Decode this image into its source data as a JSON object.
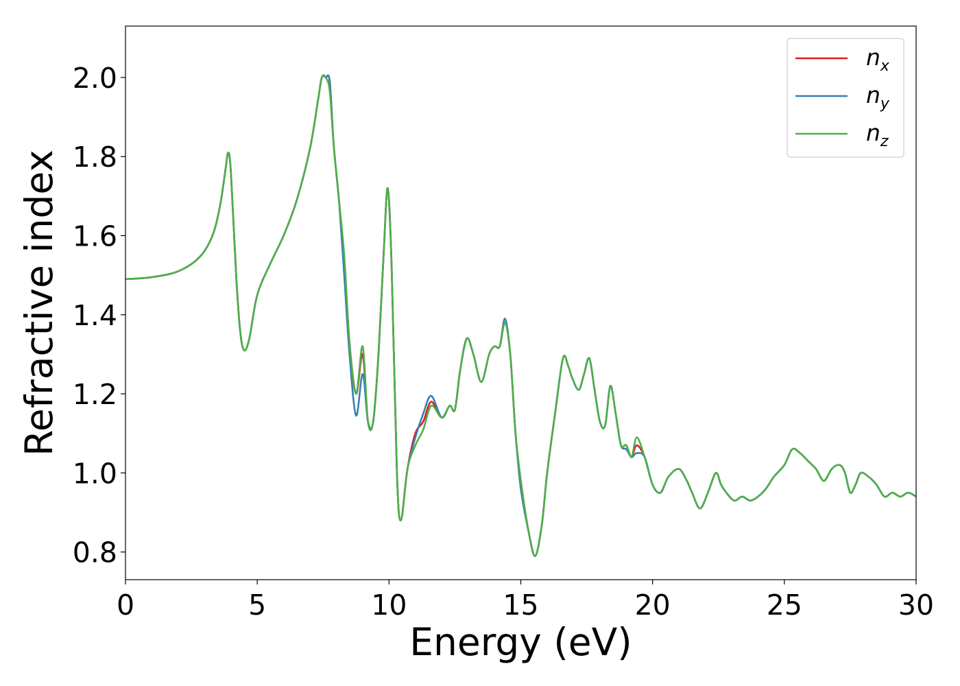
{
  "chart_data": {
    "type": "line",
    "title": "",
    "xlabel": "Energy (eV)",
    "ylabel": "Refractive index",
    "xlim": [
      0,
      30
    ],
    "ylim": [
      0.73,
      2.13
    ],
    "xticks": [
      0,
      5,
      10,
      15,
      20,
      25,
      30
    ],
    "yticks": [
      0.8,
      1.0,
      1.2,
      1.4,
      1.6,
      1.8,
      2.0
    ],
    "xtick_labels": [
      "0",
      "5",
      "10",
      "15",
      "20",
      "25",
      "30"
    ],
    "ytick_labels": [
      "0.8",
      "1.0",
      "1.2",
      "1.4",
      "1.6",
      "1.8",
      "2.0"
    ],
    "grid": false,
    "legend_position": "top-right",
    "colors": {
      "n_x": "#e41a1c",
      "n_y": "#377eb8",
      "n_z": "#4daf4a"
    },
    "base_curve": [
      [
        0.0,
        1.49
      ],
      [
        1.0,
        1.495
      ],
      [
        2.0,
        1.51
      ],
      [
        2.8,
        1.545
      ],
      [
        3.3,
        1.6
      ],
      [
        3.6,
        1.68
      ],
      [
        3.8,
        1.77
      ],
      [
        3.9,
        1.81
      ],
      [
        4.0,
        1.76
      ],
      [
        4.2,
        1.5
      ],
      [
        4.35,
        1.36
      ],
      [
        4.5,
        1.31
      ],
      [
        4.7,
        1.34
      ],
      [
        5.0,
        1.45
      ],
      [
        5.5,
        1.53
      ],
      [
        6.0,
        1.6
      ],
      [
        6.5,
        1.69
      ],
      [
        7.0,
        1.82
      ],
      [
        7.3,
        1.94
      ],
      [
        7.45,
        2.0
      ],
      [
        7.6,
        2.0
      ],
      [
        7.75,
        1.99
      ],
      [
        7.9,
        1.83
      ],
      [
        8.1,
        1.69
      ],
      [
        8.3,
        1.5
      ],
      [
        8.5,
        1.33
      ],
      [
        8.75,
        1.2
      ],
      [
        9.0,
        1.3
      ],
      [
        9.2,
        1.13
      ],
      [
        9.4,
        1.13
      ],
      [
        9.6,
        1.3
      ],
      [
        9.8,
        1.56
      ],
      [
        9.95,
        1.72
      ],
      [
        10.1,
        1.52
      ],
      [
        10.3,
        1.0
      ],
      [
        10.45,
        0.88
      ],
      [
        10.7,
        1.01
      ],
      [
        11.0,
        1.09
      ],
      [
        11.3,
        1.13
      ],
      [
        11.6,
        1.17
      ],
      [
        12.0,
        1.14
      ],
      [
        12.3,
        1.17
      ],
      [
        12.5,
        1.16
      ],
      [
        12.7,
        1.26
      ],
      [
        12.95,
        1.34
      ],
      [
        13.2,
        1.3
      ],
      [
        13.5,
        1.23
      ],
      [
        13.8,
        1.3
      ],
      [
        14.0,
        1.32
      ],
      [
        14.2,
        1.32
      ],
      [
        14.4,
        1.38
      ],
      [
        14.6,
        1.3
      ],
      [
        14.8,
        1.1
      ],
      [
        15.0,
        0.98
      ],
      [
        15.3,
        0.85
      ],
      [
        15.55,
        0.79
      ],
      [
        15.8,
        0.87
      ],
      [
        16.0,
        1.0
      ],
      [
        16.3,
        1.15
      ],
      [
        16.6,
        1.29
      ],
      [
        16.8,
        1.27
      ],
      [
        16.95,
        1.24
      ],
      [
        17.2,
        1.21
      ],
      [
        17.4,
        1.25
      ],
      [
        17.6,
        1.29
      ],
      [
        17.8,
        1.21
      ],
      [
        18.0,
        1.13
      ],
      [
        18.2,
        1.12
      ],
      [
        18.4,
        1.22
      ],
      [
        18.6,
        1.15
      ],
      [
        18.8,
        1.07
      ],
      [
        19.0,
        1.07
      ],
      [
        19.2,
        1.04
      ],
      [
        19.4,
        1.07
      ],
      [
        19.7,
        1.04
      ],
      [
        20.0,
        0.97
      ],
      [
        20.3,
        0.95
      ],
      [
        20.6,
        0.99
      ],
      [
        21.0,
        1.01
      ],
      [
        21.3,
        0.98
      ],
      [
        21.5,
        0.95
      ],
      [
        21.8,
        0.91
      ],
      [
        22.1,
        0.95
      ],
      [
        22.4,
        1.0
      ],
      [
        22.6,
        0.97
      ],
      [
        22.8,
        0.95
      ],
      [
        23.1,
        0.93
      ],
      [
        23.4,
        0.94
      ],
      [
        23.7,
        0.93
      ],
      [
        24.0,
        0.94
      ],
      [
        24.3,
        0.96
      ],
      [
        24.6,
        0.99
      ],
      [
        25.0,
        1.02
      ],
      [
        25.3,
        1.06
      ],
      [
        25.6,
        1.05
      ],
      [
        25.9,
        1.03
      ],
      [
        26.2,
        1.01
      ],
      [
        26.5,
        0.98
      ],
      [
        26.8,
        1.01
      ],
      [
        27.1,
        1.02
      ],
      [
        27.3,
        1.0
      ],
      [
        27.5,
        0.95
      ],
      [
        27.7,
        0.97
      ],
      [
        27.9,
        1.0
      ],
      [
        28.2,
        0.99
      ],
      [
        28.5,
        0.97
      ],
      [
        28.8,
        0.94
      ],
      [
        29.1,
        0.95
      ],
      [
        29.4,
        0.94
      ],
      [
        29.7,
        0.95
      ],
      [
        30.0,
        0.94
      ]
    ],
    "series": [
      {
        "key": "n_x",
        "label_base": "n",
        "label_sub": "x",
        "color": "#e41a1c",
        "deltas": [
          [
            7.4,
            0.02
          ],
          [
            8.3,
            0.04
          ],
          [
            8.75,
            0.0
          ],
          [
            11.0,
            0.01
          ],
          [
            11.6,
            0.01
          ],
          [
            19.4,
            0.0
          ]
        ]
      },
      {
        "key": "n_y",
        "label_base": "n",
        "label_sub": "y",
        "color": "#377eb8",
        "deltas": [
          [
            7.4,
            0.06
          ],
          [
            8.5,
            -0.03
          ],
          [
            8.75,
            -0.055
          ],
          [
            9.0,
            -0.05
          ],
          [
            11.3,
            0.02
          ],
          [
            11.6,
            0.025
          ],
          [
            14.4,
            0.01
          ],
          [
            15.0,
            -0.02
          ],
          [
            19.0,
            -0.01
          ],
          [
            19.4,
            -0.02
          ]
        ]
      },
      {
        "key": "n_z",
        "label_base": "n",
        "label_sub": "z",
        "color": "#4daf4a",
        "deltas": [
          [
            7.4,
            -0.01
          ],
          [
            7.75,
            -0.025
          ],
          [
            8.3,
            0.05
          ],
          [
            9.0,
            0.02
          ],
          [
            11.0,
            -0.02
          ],
          [
            11.3,
            -0.02
          ],
          [
            19.4,
            0.02
          ]
        ]
      }
    ]
  }
}
